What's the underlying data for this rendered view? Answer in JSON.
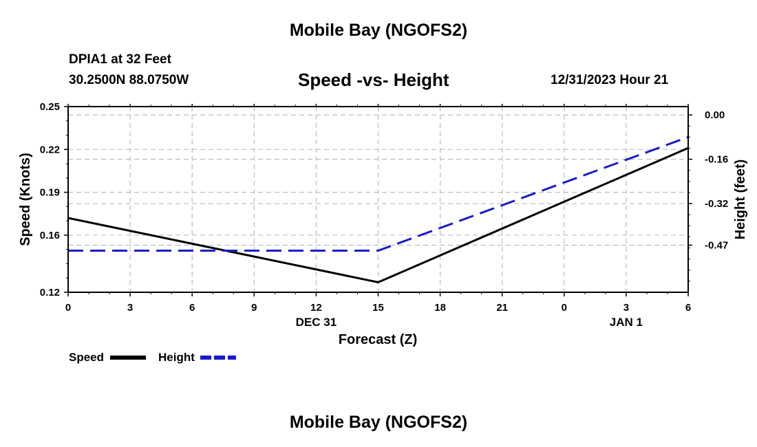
{
  "header": {
    "title": "Mobile Bay (NGOFS2)",
    "station": "DPIA1 at 32 Feet",
    "coords": "30.2500N  88.0750W",
    "datetime": "12/31/2023 Hour 21"
  },
  "footer": {
    "title": "Mobile Bay (NGOFS2)"
  },
  "chart_data": {
    "type": "line",
    "title": "Speed -vs- Height",
    "xlabel": "Forecast (Z)",
    "ylabel": "Speed (Knots)",
    "y2label": "Height (feet)",
    "x_ticks": [
      "0",
      "3",
      "6",
      "9",
      "12",
      "15",
      "18",
      "21",
      "0",
      "3",
      "6"
    ],
    "x_tick_hours": [
      0,
      3,
      6,
      9,
      12,
      15,
      18,
      21,
      24,
      27,
      30
    ],
    "date_labels": [
      {
        "text": "DEC 31",
        "hour": 12
      },
      {
        "text": "JAN 1",
        "hour": 27
      }
    ],
    "xlim": [
      0,
      30
    ],
    "ylim": [
      0.12,
      0.25
    ],
    "y_ticks": [
      "0.25",
      "0.22",
      "0.19",
      "0.16",
      "0.12"
    ],
    "y_tick_values": [
      0.25,
      0.22,
      0.19,
      0.16,
      0.12
    ],
    "y2lim": [
      -0.64,
      0.03
    ],
    "y2_ticks": [
      "0.00",
      "-0.16",
      "-0.32",
      "-0.47"
    ],
    "y2_tick_values": [
      0.0,
      -0.16,
      -0.32,
      -0.47
    ],
    "series": [
      {
        "name": "Speed",
        "axis": "left",
        "color": "#000000",
        "dash": "solid",
        "x": [
          0,
          15,
          30
        ],
        "y": [
          0.172,
          0.127,
          0.221
        ]
      },
      {
        "name": "Height",
        "axis": "right",
        "color": "#1a1acc",
        "dash": "dashed",
        "x": [
          0,
          15,
          30
        ],
        "y": [
          -0.49,
          -0.49,
          -0.08
        ]
      }
    ],
    "legend": [
      {
        "label": "Speed",
        "color": "#000000",
        "dash": "solid"
      },
      {
        "label": "Height",
        "color": "#1a1acc",
        "dash": "dashed"
      }
    ],
    "grid": true
  }
}
